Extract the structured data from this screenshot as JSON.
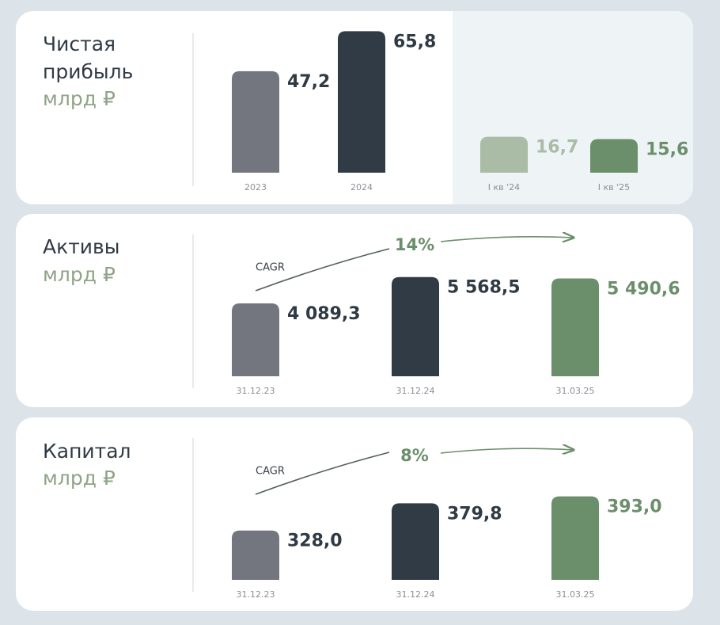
{
  "chart_data": [
    {
      "type": "bar",
      "title": "Чистая прибыль",
      "unit": "млрд ₽",
      "categories": [
        "2023",
        "2024",
        "I кв '24",
        "I кв '25"
      ],
      "values": [
        47.2,
        65.8,
        16.7,
        15.6
      ],
      "value_labels": [
        "47,2",
        "65,8",
        "16,7",
        "15,6"
      ],
      "colors": [
        "#74767f",
        "#313b45",
        "#aabba6",
        "#6b8f6a"
      ],
      "label_colors": [
        "#2f3a44",
        "#2f3a44",
        "#aabba6",
        "#6b8f6a"
      ],
      "ylim": [
        0,
        70
      ]
    },
    {
      "type": "bar",
      "title": "Активы",
      "unit": "млрд ₽",
      "cagr_label": "CAGR",
      "cagr": "14%",
      "categories": [
        "31.12.23",
        "31.12.24",
        "31.03.25"
      ],
      "values": [
        4089.3,
        5568.5,
        5490.6
      ],
      "value_labels": [
        "4 089,3",
        "5 568,5",
        "5 490,6"
      ],
      "colors": [
        "#74767f",
        "#313b45",
        "#6b8f6a"
      ],
      "label_colors": [
        "#2f3a44",
        "#2f3a44",
        "#6b8f6a"
      ],
      "ylim": [
        0,
        6000
      ]
    },
    {
      "type": "bar",
      "title": "Капитал",
      "unit": "млрд ₽",
      "cagr_label": "CAGR",
      "cagr": "8%",
      "categories": [
        "31.12.23",
        "31.12.24",
        "31.03.25"
      ],
      "values": [
        328.0,
        379.8,
        393.0
      ],
      "value_labels": [
        "328,0",
        "379,8",
        "393,0"
      ],
      "colors": [
        "#74767f",
        "#313b45",
        "#6b8f6a"
      ],
      "label_colors": [
        "#2f3a44",
        "#2f3a44",
        "#6b8f6a"
      ],
      "ylim": [
        234,
        400
      ]
    }
  ]
}
